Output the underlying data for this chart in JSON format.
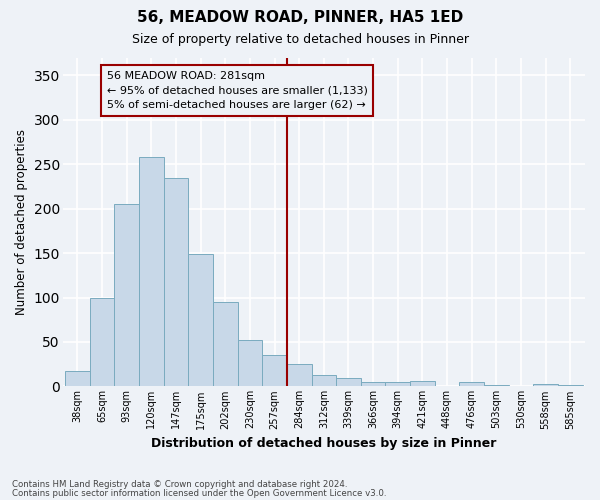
{
  "title": "56, MEADOW ROAD, PINNER, HA5 1ED",
  "subtitle": "Size of property relative to detached houses in Pinner",
  "xlabel": "Distribution of detached houses by size in Pinner",
  "ylabel": "Number of detached properties",
  "categories": [
    "38sqm",
    "65sqm",
    "93sqm",
    "120sqm",
    "147sqm",
    "175sqm",
    "202sqm",
    "230sqm",
    "257sqm",
    "284sqm",
    "312sqm",
    "339sqm",
    "366sqm",
    "394sqm",
    "421sqm",
    "448sqm",
    "476sqm",
    "503sqm",
    "530sqm",
    "558sqm",
    "585sqm"
  ],
  "values": [
    17,
    100,
    205,
    258,
    234,
    149,
    95,
    52,
    35,
    25,
    13,
    9,
    5,
    5,
    6,
    0,
    5,
    2,
    0,
    3,
    2
  ],
  "bar_color": "#c8d8e8",
  "bar_edge_color": "#7aabbf",
  "vline_x_index": 8.5,
  "vline_color": "#990000",
  "annotation_title": "56 MEADOW ROAD: 281sqm",
  "annotation_line1": "← 95% of detached houses are smaller (1,133)",
  "annotation_line2": "5% of semi-detached houses are larger (62) →",
  "annotation_box_color": "#990000",
  "ylim": [
    0,
    370
  ],
  "yticks": [
    0,
    50,
    100,
    150,
    200,
    250,
    300,
    350
  ],
  "footer1": "Contains HM Land Registry data © Crown copyright and database right 2024.",
  "footer2": "Contains public sector information licensed under the Open Government Licence v3.0.",
  "bg_color": "#eef2f7",
  "grid_color": "#ffffff"
}
